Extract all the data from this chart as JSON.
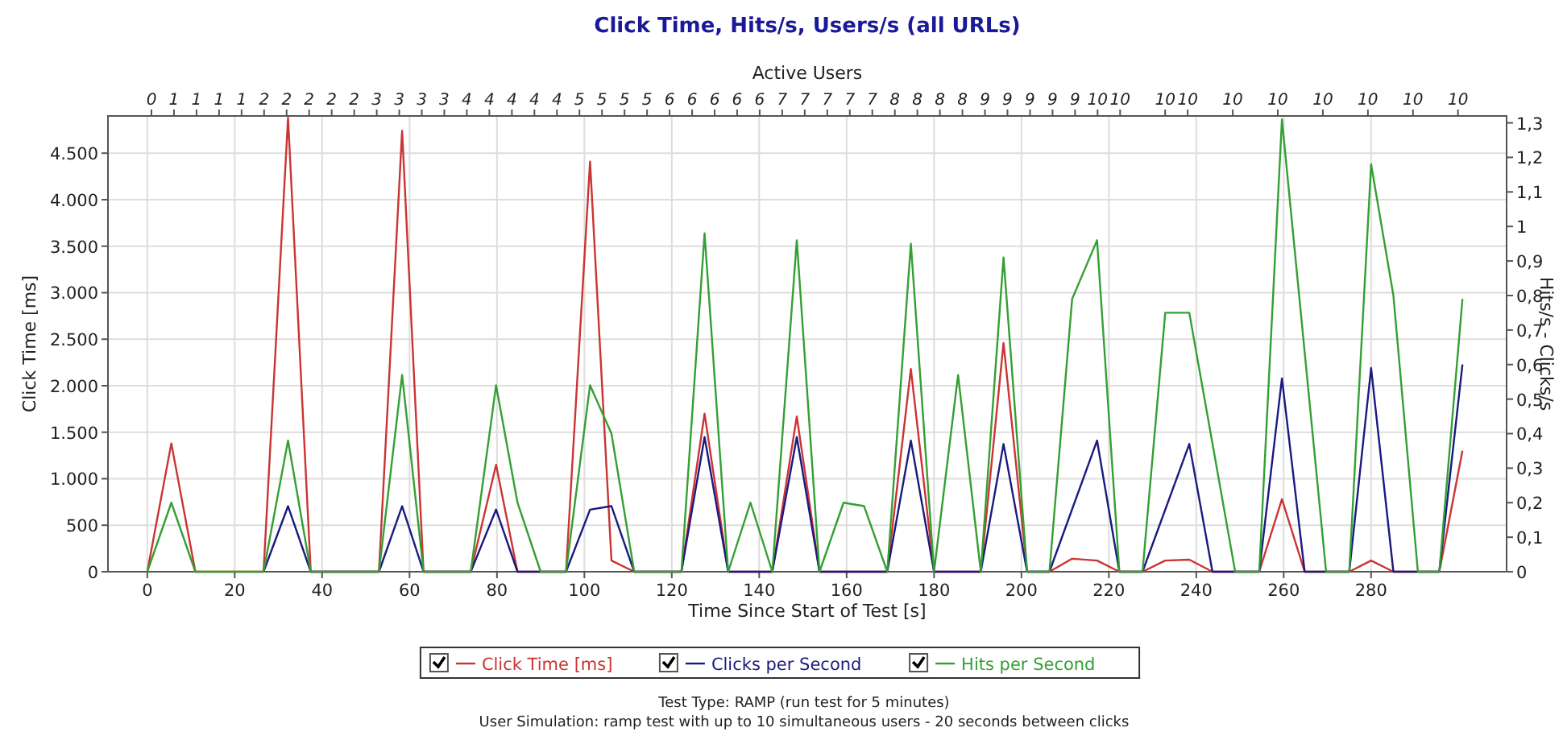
{
  "chart_data": {
    "type": "line",
    "title": "Click Time, Hits/s, Users/s (all URLs)",
    "xlabel": "Time Since Start of Test [s]",
    "ylabel": "Click Time [ms]",
    "y2label": "Hits/s - Clicks/s",
    "x2label": "Active Users",
    "xlim": [
      -9,
      311
    ],
    "xticks": [
      0,
      20,
      40,
      60,
      80,
      100,
      120,
      140,
      160,
      180,
      200,
      220,
      240,
      260,
      280
    ],
    "ylim": [
      0,
      4900
    ],
    "yticks": [
      0,
      500,
      {
        "value": 1000,
        "label": "1.000"
      },
      {
        "value": 1500,
        "label": "1.500"
      },
      {
        "value": 2000,
        "label": "2.000"
      },
      {
        "value": 2500,
        "label": "2.500"
      },
      {
        "value": 3000,
        "label": "3.000"
      },
      {
        "value": 3500,
        "label": "3.500"
      },
      {
        "value": 4000,
        "label": "4.000"
      },
      {
        "value": 4500,
        "label": "4.500"
      }
    ],
    "y2lim": [
      0,
      1.32
    ],
    "y2ticks": [
      0,
      {
        "value": 0.1,
        "label": "0,1"
      },
      {
        "value": 0.2,
        "label": "0,2"
      },
      {
        "value": 0.3,
        "label": "0,3"
      },
      {
        "value": 0.4,
        "label": "0,4"
      },
      {
        "value": 0.5,
        "label": "0,5"
      },
      {
        "value": 0.6,
        "label": "0,6"
      },
      {
        "value": 0.7,
        "label": "0,7"
      },
      {
        "value": 0.8,
        "label": "0,8"
      },
      {
        "value": 0.9,
        "label": "0,9"
      },
      1,
      {
        "value": 1.1,
        "label": "1,1"
      },
      {
        "value": 1.2,
        "label": "1,2"
      },
      {
        "value": 1.3,
        "label": "1,3"
      }
    ],
    "annotations": [
      "0",
      "1",
      "1",
      "1",
      "1",
      "2",
      "2",
      "2",
      "2",
      "2",
      "3",
      "3",
      "3",
      "3",
      "4",
      "4",
      "4",
      "4",
      "4",
      "5",
      "5",
      "5",
      "5",
      "6",
      "6",
      "6",
      "6",
      "6",
      "7",
      "7",
      "7",
      "7",
      "7",
      "8",
      "8",
      "8",
      "8",
      "9",
      "9",
      "9",
      "9",
      "9",
      "10",
      "10",
      "10",
      "10",
      "10",
      "10",
      "10",
      "10",
      "10",
      "10",
      "Test Type: RAMP (run test for 5 minutes)",
      "User Simulation: ramp test with up to 10 simultaneous users - 20 seconds between clicks"
    ],
    "grid": true,
    "legend": "bottom",
    "marker": "none",
    "line_style": "solid",
    "series": [
      {
        "name": "Click Time [ms]",
        "color": "#cc3333",
        "x": [
          0,
          5.5,
          11,
          26.6,
          32.2,
          37.4,
          53,
          58.3,
          63.2,
          74,
          79.8,
          84.7,
          95.8,
          101.3,
          106.2,
          111.4,
          122.2,
          127.5,
          132.9,
          143,
          148.6,
          153.8,
          169.3,
          174.7,
          180,
          190.7,
          195.9,
          201.3,
          206.4,
          211.6,
          217.3,
          222.4,
          227.7,
          232.9,
          238.4,
          243.7,
          254.4,
          259.6,
          264.8,
          275,
          280,
          285.1,
          295.6,
          300.9
        ],
        "values": [
          0,
          1380,
          0,
          0,
          4880,
          0,
          0,
          4740,
          0,
          0,
          1150,
          0,
          0,
          4410,
          120,
          0,
          0,
          1700,
          0,
          0,
          1670,
          0,
          0,
          2180,
          0,
          0,
          2460,
          0,
          0,
          140,
          120,
          0,
          0,
          120,
          130,
          0,
          0,
          780,
          0,
          0,
          120,
          0,
          0,
          1300
        ]
      },
      {
        "name": "Clicks per Second",
        "color": "#1a1a80",
        "axis": "y2",
        "x": [
          26.6,
          32.2,
          37.4,
          53,
          58.3,
          63.2,
          74,
          79.8,
          84.7,
          95.8,
          101.3,
          106.2,
          111.4,
          122.2,
          127.5,
          132.9,
          143,
          148.6,
          153.8,
          169.3,
          174.7,
          180,
          190.7,
          195.9,
          201.3,
          206.4,
          217.3,
          222.4,
          227.7,
          238.4,
          243.7,
          254.4,
          259.6,
          264.8,
          275,
          280,
          285.1,
          295.6,
          300.9
        ],
        "values": [
          0,
          0.19,
          0,
          0,
          0.19,
          0,
          0,
          0.18,
          0,
          0,
          0.18,
          0.19,
          0,
          0,
          0.39,
          0,
          0,
          0.39,
          0,
          0,
          0.38,
          0,
          0,
          0.37,
          0,
          0,
          0.38,
          0,
          0,
          0.37,
          0,
          0,
          0.56,
          0,
          0,
          0.59,
          0,
          0,
          0.6
        ]
      },
      {
        "name": "Hits per Second",
        "color": "#33a033",
        "axis": "y2",
        "x": [
          0,
          5.5,
          11,
          26.6,
          32.2,
          37.4,
          53,
          58.3,
          63.2,
          74,
          79.8,
          84.7,
          90,
          95.8,
          101.3,
          106.2,
          111.4,
          122.2,
          127.5,
          132.9,
          138,
          143,
          148.6,
          153.8,
          159.3,
          164,
          169.3,
          174.7,
          180,
          185.5,
          190.7,
          195.9,
          201.3,
          206.4,
          211.6,
          217.3,
          222.4,
          227.7,
          232.9,
          238.4,
          248.9,
          254.4,
          259.6,
          269.7,
          275,
          280,
          285.1,
          290.7,
          295.6,
          300.9
        ],
        "values": [
          0,
          0.2,
          0,
          0,
          0.38,
          0,
          0,
          0.57,
          0,
          0,
          0.54,
          0.2,
          0,
          0,
          0.54,
          0.4,
          0,
          0,
          0.98,
          0,
          0.2,
          0,
          0.96,
          0,
          0.2,
          0.19,
          0,
          0.95,
          0,
          0.57,
          0,
          0.91,
          0,
          0,
          0.79,
          0.96,
          0,
          0,
          0.75,
          0.75,
          0,
          0,
          1.31,
          0,
          0,
          1.18,
          0.8,
          0,
          0,
          0.79
        ]
      }
    ]
  }
}
